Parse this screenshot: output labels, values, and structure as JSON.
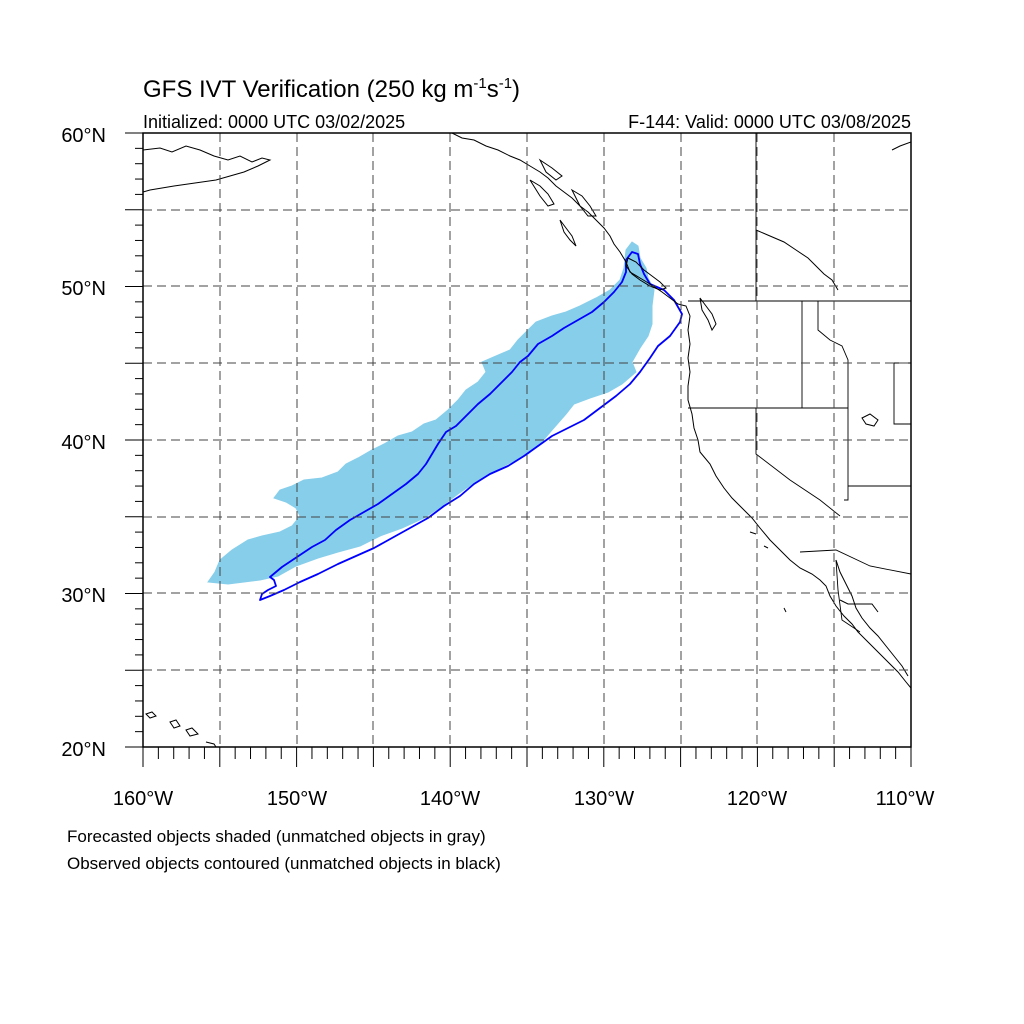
{
  "title": {
    "text_main": "GFS IVT Verification (250 kg m",
    "sup1": "-1",
    "mid": "s",
    "sup2": "-1",
    "close": ")"
  },
  "initialized": "Initialized: 0000 UTC 03/02/2025",
  "valid": "F-144: Valid: 0000 UTC 03/08/2025",
  "lat_labels": [
    "60°N",
    "50°N",
    "40°N",
    "30°N",
    "20°N"
  ],
  "lon_labels": [
    "160°W",
    "150°W",
    "140°W",
    "130°W",
    "120°W",
    "110°W"
  ],
  "footnotes": [
    "Forecasted objects shaded (unmatched objects in gray)",
    "Observed objects contoured (unmatched objects in black)"
  ],
  "colors": {
    "forecast_fill": "#87CEEB",
    "observed_contour": "#0000FF",
    "coastline": "#000000",
    "gridline": "#444444"
  }
}
